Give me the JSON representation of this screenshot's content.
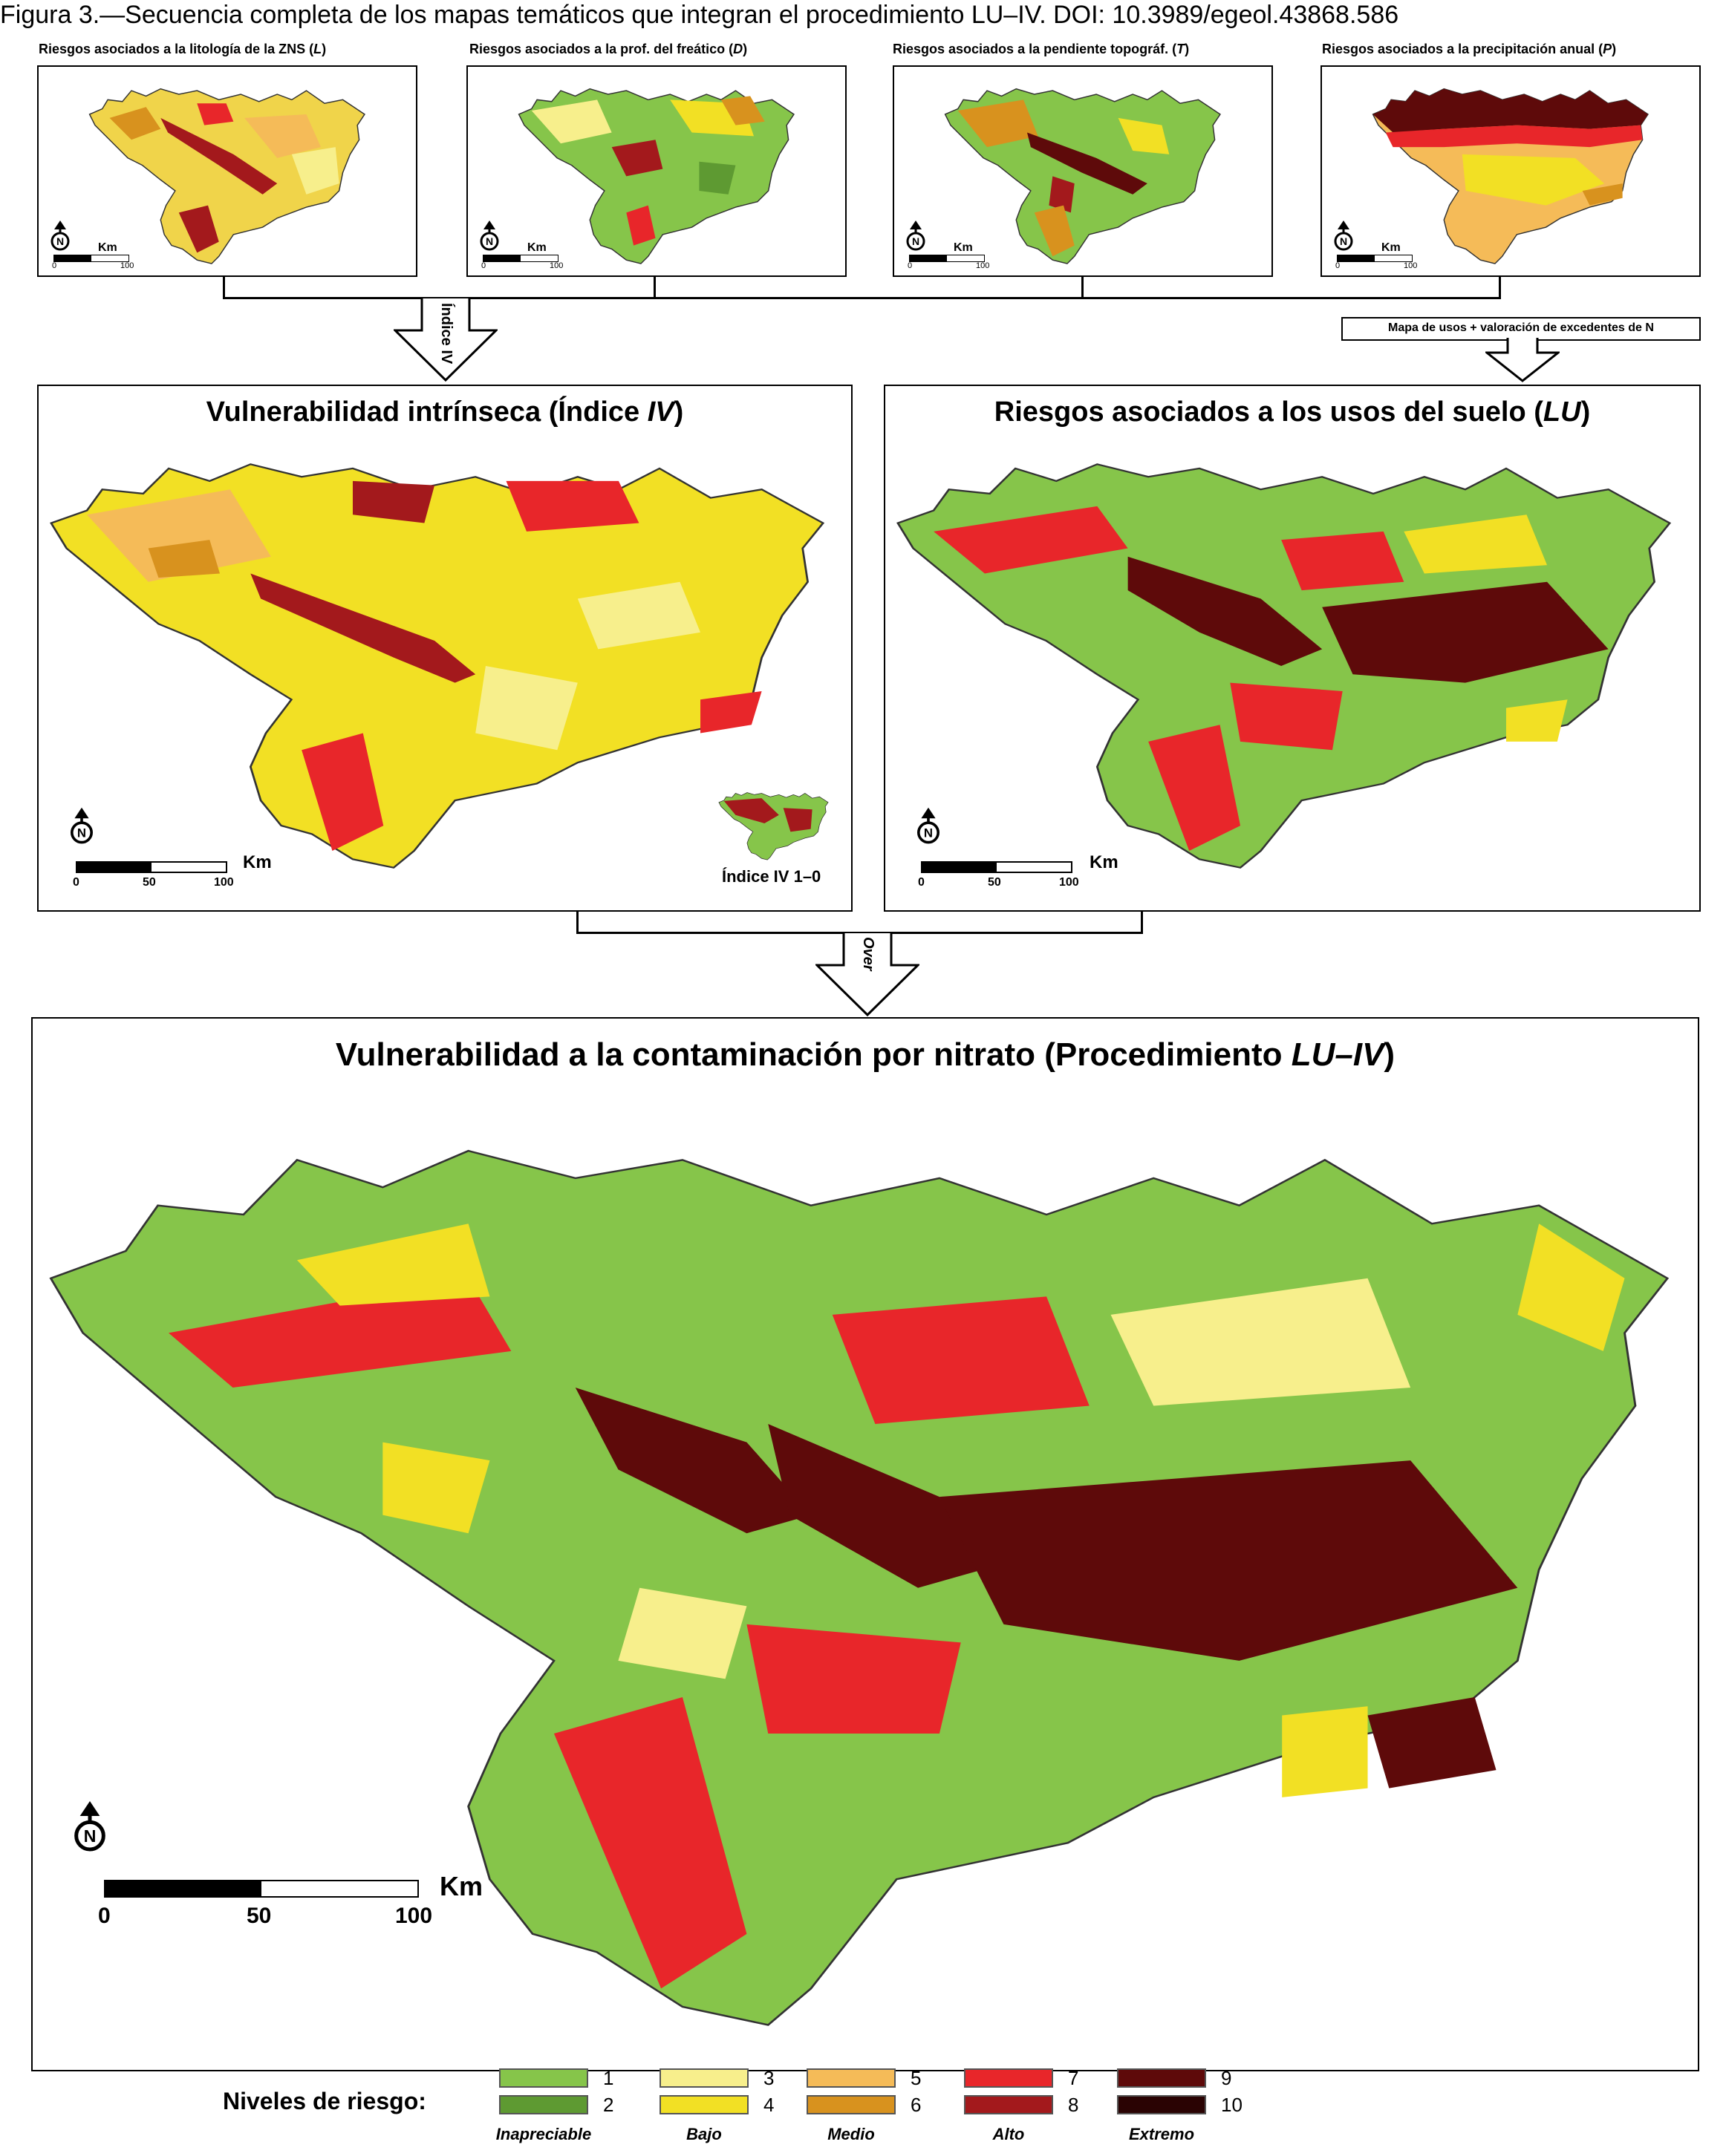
{
  "caption": "Figura 3.—Secuencia completa de los mapas temáticos que integran el procedimiento LU–IV. DOI: 10.3989/egeol.43868.586",
  "top_maps": [
    {
      "title": "Riesgos asociados a la litología de la ZNS (",
      "var": "L",
      "close": ")"
    },
    {
      "title": "Riesgos asociados a la prof. del freático (",
      "var": "D",
      "close": ")"
    },
    {
      "title": "Riesgos asociados a la pendiente topográf. (",
      "var": "T",
      "close": ")"
    },
    {
      "title": "Riesgos asociados a la precipitación anual (",
      "var": "P",
      "close": ")"
    }
  ],
  "scale_small": {
    "unit": "Km",
    "ticks": [
      "0",
      "100"
    ]
  },
  "scale_medium": {
    "unit": "Km",
    "ticks": [
      "0",
      "50",
      "100"
    ]
  },
  "scale_large": {
    "unit": "Km",
    "ticks": [
      "0",
      "50",
      "100"
    ]
  },
  "north_letter": "N",
  "arrow_label_iv": "Índice IV",
  "lu_source_box": "Mapa de usos + valoración de excedentes de N",
  "panel_iv": {
    "title": "Vulnerabilidad intrínseca (Índice ",
    "var": "IV",
    "close": ")",
    "inset_label": "Índice IV 1–0"
  },
  "panel_lu": {
    "title": "Riesgos asociados a los usos del suelo (",
    "var": "LU",
    "close": ")"
  },
  "arrow_label_over": "Over",
  "final_panel": {
    "title": "Vulnerabilidad a la contaminación por nitrato  (Procedimiento ",
    "var": "LU–IV",
    "close": ")"
  },
  "legend": {
    "title": "Niveles de riesgo:",
    "levels": [
      {
        "n": "1",
        "color": "#86c54a"
      },
      {
        "n": "2",
        "color": "#5e9a32"
      },
      {
        "n": "3",
        "color": "#f7ef8c"
      },
      {
        "n": "4",
        "color": "#f2e024"
      },
      {
        "n": "5",
        "color": "#f5bb58"
      },
      {
        "n": "6",
        "color": "#d8921e"
      },
      {
        "n": "7",
        "color": "#e8262a"
      },
      {
        "n": "8",
        "color": "#a3191c"
      },
      {
        "n": "9",
        "color": "#5e0a0a"
      },
      {
        "n": "10",
        "color": "#2a0303"
      }
    ],
    "categories": [
      "Inapreciable",
      "Bajo",
      "Medio",
      "Alto",
      "Extremo"
    ]
  },
  "colors": {
    "green": "#86c54a",
    "dark_green": "#5e9a32",
    "yellow": "#f2e024",
    "light_yellow": "#f7ef8c",
    "orange": "#f5bb58",
    "red": "#e8262a",
    "dark_red": "#a3191c",
    "maroon": "#5e0a0a"
  }
}
